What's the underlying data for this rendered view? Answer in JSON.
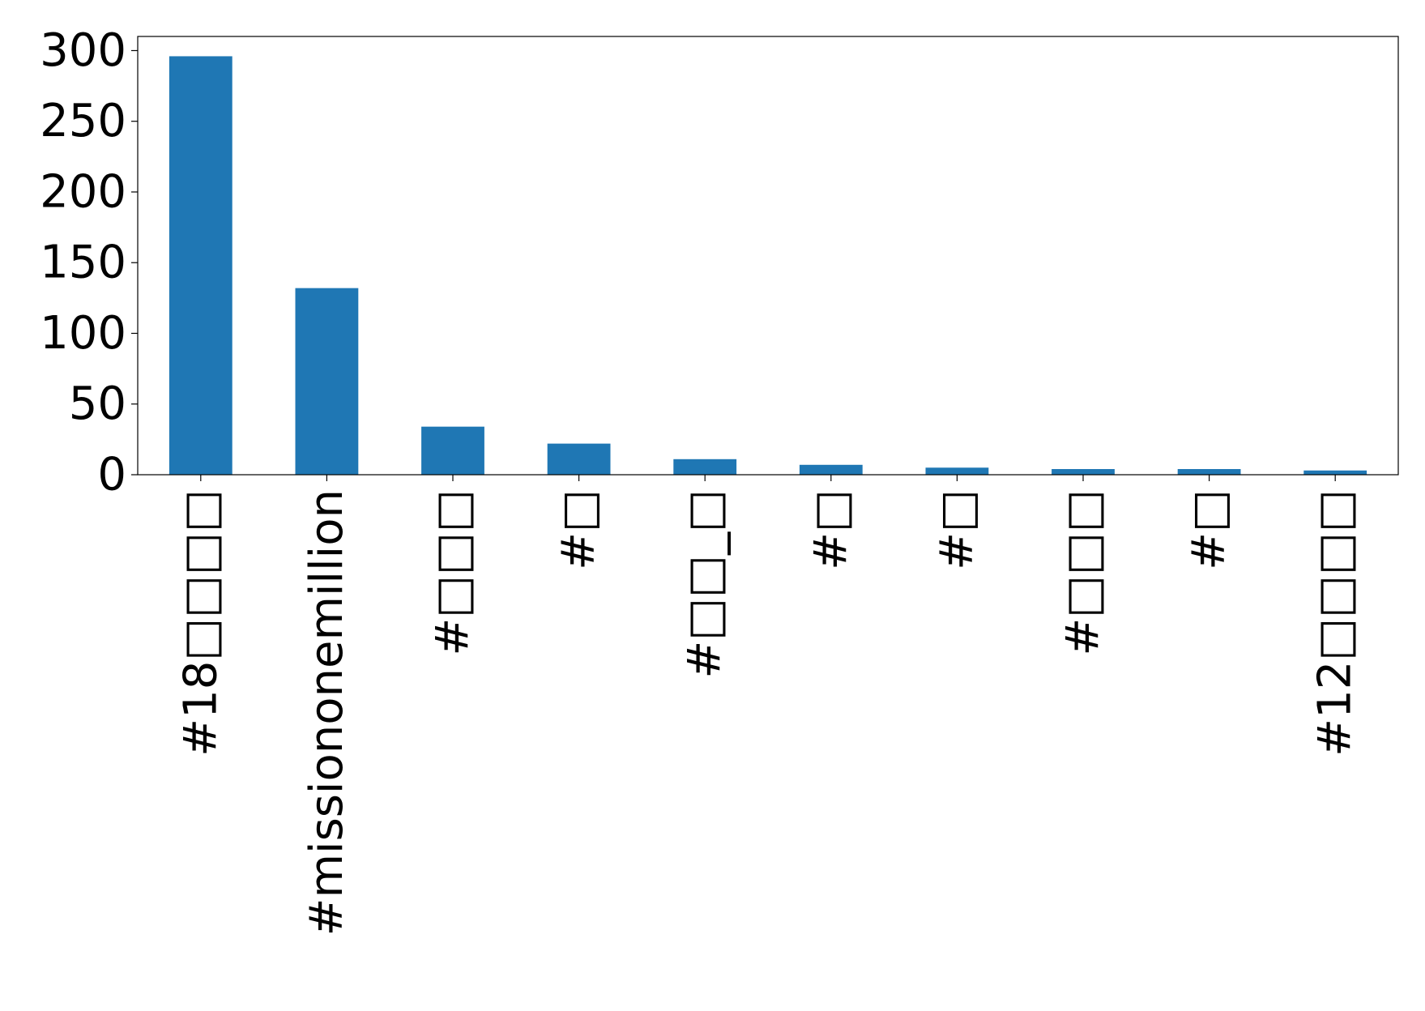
{
  "chart_data": {
    "type": "bar",
    "categories": [
      "#18□□□□",
      "#missiononemillion",
      "#□□□",
      "#□",
      "#□□_□",
      "#□",
      "#□",
      "#□□□",
      "#□",
      "#12□□□□"
    ],
    "values": [
      296,
      132,
      34,
      22,
      11,
      7,
      5,
      4,
      4,
      3
    ],
    "title": "",
    "xlabel": "",
    "ylabel": "",
    "ylim": [
      0,
      310
    ],
    "yticks": [
      0,
      50,
      100,
      150,
      200,
      250,
      300
    ],
    "grid": false,
    "legend": "none",
    "bar_color": "#1f77b4"
  }
}
